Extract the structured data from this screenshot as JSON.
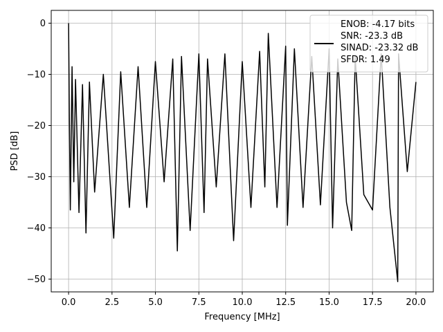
{
  "chart_data": {
    "type": "line",
    "title": "",
    "xlabel": "Frequency [MHz]",
    "ylabel": "PSD [dB]",
    "xlim": [
      -1.0,
      21.0
    ],
    "ylim": [
      -52.5,
      2.5
    ],
    "xticks": [
      0.0,
      2.5,
      5.0,
      7.5,
      10.0,
      12.5,
      15.0,
      17.5,
      20.0
    ],
    "xtick_labels": [
      "0.0",
      "2.5",
      "5.0",
      "7.5",
      "10.0",
      "12.5",
      "15.0",
      "17.5",
      "20.0"
    ],
    "yticks": [
      0,
      -10,
      -20,
      -30,
      -40,
      -50
    ],
    "ytick_labels": [
      "0",
      "−10",
      "−20",
      "−30",
      "−40",
      "−50"
    ],
    "grid": true,
    "legend_position": "top-right",
    "legend_lines": [
      "ENOB: -4.17 bits",
      "SNR: -23.3 dB",
      "SINAD: -23.32 dB",
      "SFDR: 1.49"
    ],
    "series": [
      {
        "color": "#000000",
        "x": [
          0.0,
          0.05,
          0.1,
          0.2,
          0.3,
          0.4,
          0.6,
          0.8,
          1.0,
          1.2,
          1.5,
          2.0,
          2.6,
          3.0,
          3.5,
          4.0,
          4.5,
          5.0,
          5.5,
          6.0,
          6.26,
          6.5,
          7.0,
          7.5,
          7.8,
          8.0,
          8.5,
          9.0,
          9.5,
          10.0,
          10.5,
          11.0,
          11.3,
          11.5,
          12.0,
          12.5,
          12.6,
          13.0,
          13.5,
          14.0,
          14.5,
          15.0,
          15.2,
          15.5,
          16.0,
          16.3,
          16.5,
          17.0,
          17.5,
          18.0,
          18.5,
          18.95,
          19.0,
          19.5,
          20.0
        ],
        "y": [
          0.0,
          -20.0,
          -36.5,
          -8.5,
          -31.0,
          -11.0,
          -37.0,
          -12.0,
          -41.0,
          -11.5,
          -33.0,
          -10.0,
          -42.0,
          -9.5,
          -36.0,
          -8.5,
          -36.0,
          -7.5,
          -31.0,
          -7.0,
          -44.5,
          -6.5,
          -40.5,
          -6.0,
          -37.0,
          -7.0,
          -32.0,
          -6.0,
          -42.5,
          -7.5,
          -36.0,
          -5.5,
          -32.0,
          -2.0,
          -36.0,
          -4.5,
          -39.5,
          -5.0,
          -36.0,
          -6.5,
          -35.5,
          -5.0,
          -40.0,
          -7.0,
          -35.0,
          -40.5,
          -6.5,
          -33.5,
          -36.5,
          -6.0,
          -36.0,
          -50.5,
          -6.0,
          -29.0,
          -11.5
        ]
      }
    ]
  }
}
